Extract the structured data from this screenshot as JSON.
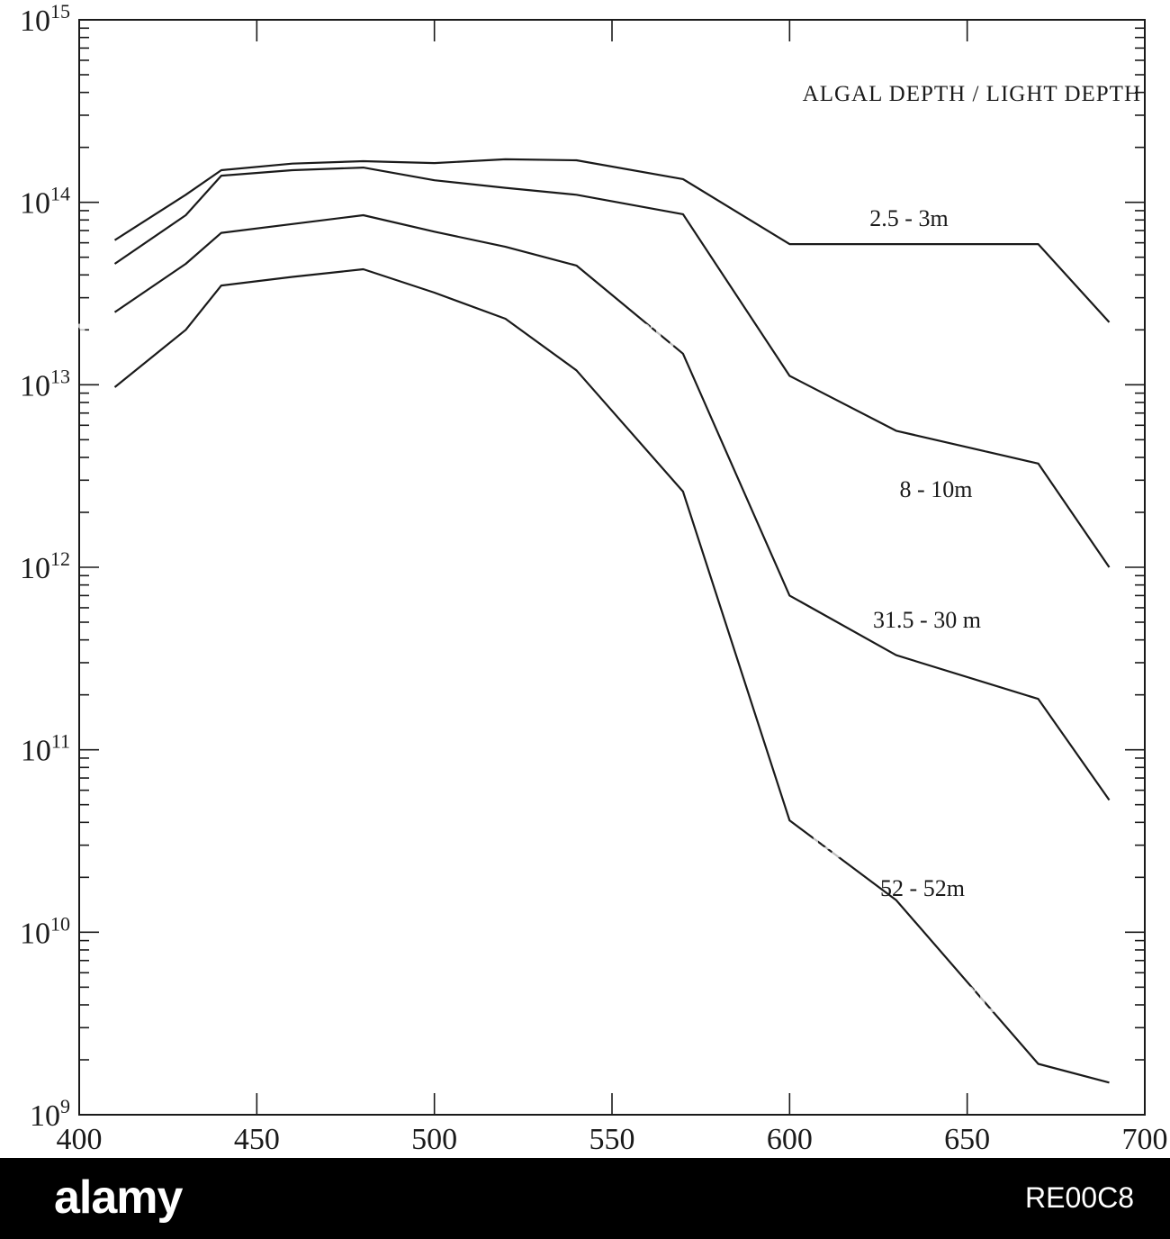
{
  "chart_data": {
    "type": "line",
    "title": "",
    "xlabel": "",
    "ylabel": "",
    "xlim": [
      400,
      700
    ],
    "ylim": [
      1000000000.0,
      1000000000000000.0
    ],
    "y_scale": "log",
    "grid": false,
    "legend_title": "ALGAL DEPTH / LIGHT DEPTH",
    "x_ticks": [
      "400",
      "450",
      "500",
      "550",
      "600",
      "650",
      "700"
    ],
    "y_ticks": [
      {
        "base": "10",
        "exp": "9"
      },
      {
        "base": "10",
        "exp": "10"
      },
      {
        "base": "10",
        "exp": "11"
      },
      {
        "base": "10",
        "exp": "12"
      },
      {
        "base": "10",
        "exp": "13"
      },
      {
        "base": "10",
        "exp": "14"
      },
      {
        "base": "10",
        "exp": "15"
      }
    ],
    "x": [
      410,
      430,
      440,
      460,
      480,
      500,
      520,
      540,
      570,
      600,
      630,
      670,
      690
    ],
    "series": [
      {
        "name": "2.5 - 3m",
        "values": [
          62000000000000.0,
          110000000000000.0,
          150000000000000.0,
          163000000000000.0,
          168000000000000.0,
          164000000000000.0,
          172000000000000.0,
          170000000000000.0,
          134000000000000.0,
          59000000000000.0,
          59000000000000.0,
          59000000000000.0,
          22000000000000.0
        ]
      },
      {
        "name": "8 - 10m",
        "values": [
          46000000000000.0,
          85000000000000.0,
          140000000000000.0,
          150000000000000.0,
          155000000000000.0,
          132000000000000.0,
          120000000000000.0,
          110000000000000.0,
          86000000000000.0,
          11200000000000.0,
          5600000000000.0,
          3700000000000.0,
          1000000000000.0
        ]
      },
      {
        "name": "31.5 - 30 m",
        "values": [
          25000000000000.0,
          46000000000000.0,
          68000000000000.0,
          76000000000000.0,
          85000000000000.0,
          69000000000000.0,
          57000000000000.0,
          45000000000000.0,
          14800000000000.0,
          700000000000.0,
          330000000000.0,
          190000000000.0,
          53000000000.0
        ]
      },
      {
        "name": "52 - 52m",
        "values": [
          9700000000000.0,
          20000000000000.0,
          35000000000000.0,
          39000000000000.0,
          43000000000000.0,
          32000000000000.0,
          23000000000000.0,
          12000000000000.0,
          2600000000000.0,
          41000000000.0,
          15000000000.0,
          1900000000.0,
          1500000000.0
        ]
      }
    ]
  },
  "watermark": {
    "text": "alamy",
    "image_id": "RE00C8"
  }
}
